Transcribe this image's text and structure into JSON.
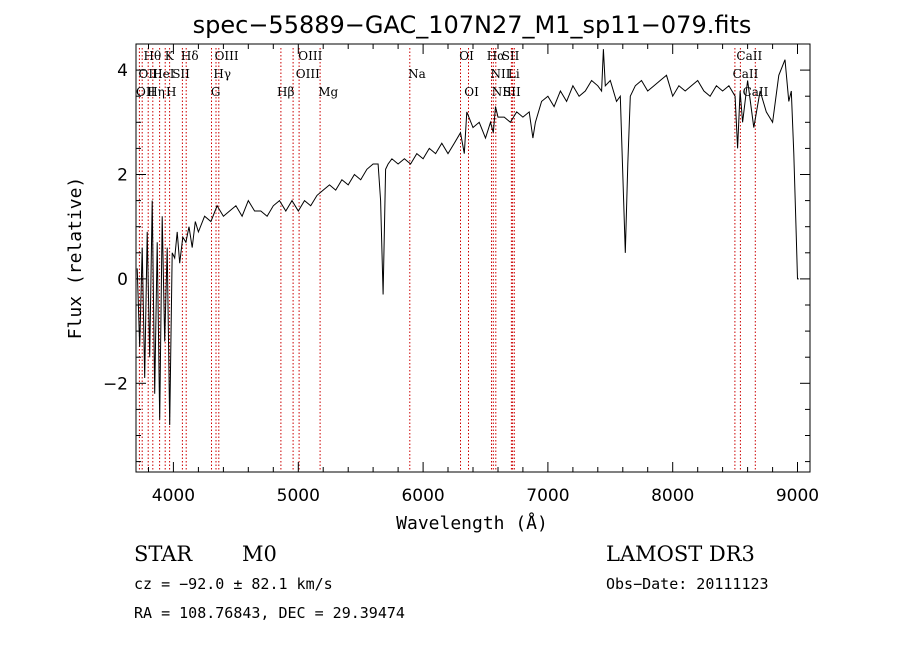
{
  "chart_data": {
    "type": "line",
    "title": "spec−55889−GAC_107N27_M1_sp11−079.fits",
    "xlabel": "Wavelength (Å)",
    "ylabel": "Flux (relative)",
    "xlim": [
      3700,
      9100
    ],
    "ylim": [
      -3.7,
      4.5
    ],
    "xticks": [
      {
        "value": 4000,
        "label": "4000"
      },
      {
        "value": 5000,
        "label": "5000"
      },
      {
        "value": 6000,
        "label": "6000"
      },
      {
        "value": 7000,
        "label": "7000"
      },
      {
        "value": 8000,
        "label": "8000"
      },
      {
        "value": 9000,
        "label": "9000"
      }
    ],
    "yticks": [
      {
        "value": -2,
        "label": "−2"
      },
      {
        "value": 0,
        "label": "0"
      },
      {
        "value": 2,
        "label": "2"
      },
      {
        "value": 4,
        "label": "4"
      }
    ],
    "series": [
      {
        "name": "flux",
        "x": [
          3710,
          3730,
          3750,
          3770,
          3790,
          3810,
          3830,
          3850,
          3870,
          3890,
          3910,
          3930,
          3950,
          3970,
          3990,
          4010,
          4030,
          4050,
          4075,
          4100,
          4125,
          4150,
          4175,
          4200,
          4250,
          4300,
          4350,
          4400,
          4450,
          4500,
          4550,
          4600,
          4650,
          4700,
          4750,
          4800,
          4850,
          4900,
          4950,
          5000,
          5050,
          5100,
          5150,
          5200,
          5250,
          5300,
          5350,
          5400,
          5450,
          5500,
          5550,
          5600,
          5640,
          5660,
          5680,
          5700,
          5720,
          5750,
          5800,
          5850,
          5900,
          5950,
          6000,
          6050,
          6100,
          6150,
          6200,
          6250,
          6300,
          6330,
          6350,
          6400,
          6450,
          6500,
          6540,
          6563,
          6580,
          6600,
          6650,
          6700,
          6750,
          6800,
          6850,
          6880,
          6900,
          6950,
          7000,
          7050,
          7100,
          7150,
          7200,
          7250,
          7300,
          7350,
          7400,
          7430,
          7445,
          7460,
          7500,
          7550,
          7580,
          7600,
          7620,
          7640,
          7660,
          7700,
          7750,
          7800,
          7850,
          7900,
          7950,
          8000,
          8050,
          8100,
          8150,
          8200,
          8250,
          8300,
          8350,
          8400,
          8450,
          8500,
          8520,
          8540,
          8560,
          8600,
          8650,
          8700,
          8750,
          8800,
          8850,
          8900,
          8930,
          8950,
          8970,
          8990,
          9000,
          9010
        ],
        "y": [
          0.2,
          -1.3,
          0.6,
          -1.9,
          0.9,
          -1.5,
          1.5,
          -2.2,
          0.7,
          -2.7,
          1.2,
          -1.2,
          0.6,
          -2.8,
          0.5,
          0.4,
          0.9,
          0.3,
          0.8,
          0.7,
          1.0,
          0.6,
          1.1,
          0.9,
          1.2,
          1.1,
          1.4,
          1.2,
          1.3,
          1.4,
          1.2,
          1.5,
          1.3,
          1.3,
          1.2,
          1.4,
          1.5,
          1.3,
          1.5,
          1.3,
          1.5,
          1.4,
          1.6,
          1.7,
          1.8,
          1.7,
          1.9,
          1.8,
          2.0,
          1.9,
          2.1,
          2.2,
          2.2,
          1.5,
          -0.3,
          2.1,
          2.2,
          2.3,
          2.2,
          2.3,
          2.2,
          2.4,
          2.3,
          2.5,
          2.4,
          2.6,
          2.4,
          2.6,
          2.8,
          2.4,
          3.2,
          2.9,
          3.0,
          2.7,
          3.0,
          2.8,
          3.3,
          3.1,
          3.1,
          3.0,
          3.2,
          3.1,
          3.2,
          2.7,
          3.0,
          3.4,
          3.5,
          3.3,
          3.6,
          3.4,
          3.7,
          3.5,
          3.6,
          3.8,
          3.7,
          3.6,
          4.4,
          3.7,
          3.8,
          3.4,
          3.5,
          2.0,
          0.5,
          2.2,
          3.5,
          3.7,
          3.8,
          3.6,
          3.7,
          3.8,
          3.9,
          3.5,
          3.7,
          3.6,
          3.7,
          3.8,
          3.6,
          3.5,
          3.7,
          3.6,
          3.7,
          3.5,
          2.5,
          3.6,
          3.0,
          3.8,
          2.9,
          3.6,
          3.2,
          3.0,
          3.9,
          4.2,
          3.4,
          3.6,
          2.4,
          0.8,
          0.0,
          0.0
        ]
      }
    ],
    "lines": [
      {
        "lambda": 3727,
        "labels": [
          "OII"
        ]
      },
      {
        "lambda": 3750,
        "labels": [
          "OII"
        ]
      },
      {
        "lambda": 3798,
        "labels": [
          "Hθ",
          "Hη"
        ]
      },
      {
        "lambda": 3835,
        "labels": [
          "Hη"
        ]
      },
      {
        "lambda": 3889,
        "labels": [
          "HeI"
        ]
      },
      {
        "lambda": 3934,
        "labels": [
          "K"
        ]
      },
      {
        "lambda": 3969,
        "labels": [
          "H"
        ]
      },
      {
        "lambda": 4072,
        "labels": [
          "SII"
        ]
      },
      {
        "lambda": 4102,
        "labels": [
          "Hδ"
        ]
      },
      {
        "lambda": 4305,
        "labels": [
          "G"
        ]
      },
      {
        "lambda": 4341,
        "labels": [
          "Hγ"
        ]
      },
      {
        "lambda": 4363,
        "labels": [
          "OIII"
        ]
      },
      {
        "lambda": 4861,
        "labels": [
          "Hβ"
        ]
      },
      {
        "lambda": 4959,
        "labels": [
          "OIII"
        ]
      },
      {
        "lambda": 5007,
        "labels": [
          "OIII"
        ]
      },
      {
        "lambda": 5175,
        "labels": [
          "Mg"
        ]
      },
      {
        "lambda": 5894,
        "labels": [
          "Na"
        ]
      },
      {
        "lambda": 6300,
        "labels": [
          "OI"
        ]
      },
      {
        "lambda": 6364,
        "labels": [
          "OI"
        ]
      },
      {
        "lambda": 6548,
        "labels": [
          "NII"
        ]
      },
      {
        "lambda": 6563,
        "labels": [
          "Hα"
        ]
      },
      {
        "lambda": 6583,
        "labels": [
          "NII"
        ]
      },
      {
        "lambda": 6708,
        "labels": [
          "Li"
        ]
      },
      {
        "lambda": 6717,
        "labels": [
          "SII"
        ]
      },
      {
        "lambda": 6731,
        "labels": [
          "SII"
        ]
      },
      {
        "lambda": 8498,
        "labels": [
          "CaII"
        ]
      },
      {
        "lambda": 8542,
        "labels": [
          "CaII"
        ]
      },
      {
        "lambda": 8662,
        "labels": [
          "CaII"
        ]
      }
    ],
    "line_labels": [
      {
        "text": "Hθ",
        "lambda": 3760,
        "row": 0
      },
      {
        "text": "K",
        "lambda": 3930,
        "row": 0
      },
      {
        "text": "Hδ",
        "lambda": 4060,
        "row": 0
      },
      {
        "text": "OIII",
        "lambda": 4330,
        "row": 0
      },
      {
        "text": "OIII",
        "lambda": 5000,
        "row": 0
      },
      {
        "text": "OI",
        "lambda": 6290,
        "row": 0
      },
      {
        "text": "Hα",
        "lambda": 6510,
        "row": 0
      },
      {
        "text": "SII",
        "lambda": 6630,
        "row": 0
      },
      {
        "text": "CaII",
        "lambda": 8510,
        "row": 0
      },
      {
        "text": "OII",
        "lambda": 3720,
        "row": 1
      },
      {
        "text": "HeI",
        "lambda": 3830,
        "row": 1
      },
      {
        "text": "SII",
        "lambda": 3990,
        "row": 1
      },
      {
        "text": "Hγ",
        "lambda": 4320,
        "row": 1
      },
      {
        "text": "OIII",
        "lambda": 4980,
        "row": 1
      },
      {
        "text": "Na",
        "lambda": 5880,
        "row": 1
      },
      {
        "text": "NII",
        "lambda": 6540,
        "row": 1
      },
      {
        "text": "Li",
        "lambda": 6680,
        "row": 1
      },
      {
        "text": "CaII",
        "lambda": 8480,
        "row": 1
      },
      {
        "text": "OII",
        "lambda": 3700,
        "row": 2
      },
      {
        "text": "Hη",
        "lambda": 3790,
        "row": 2
      },
      {
        "text": "H",
        "lambda": 3940,
        "row": 2
      },
      {
        "text": "G",
        "lambda": 4300,
        "row": 2
      },
      {
        "text": "Hβ",
        "lambda": 4830,
        "row": 2
      },
      {
        "text": "Mg",
        "lambda": 5160,
        "row": 2
      },
      {
        "text": "OI",
        "lambda": 6330,
        "row": 2
      },
      {
        "text": "NII",
        "lambda": 6550,
        "row": 2
      },
      {
        "text": "SII",
        "lambda": 6640,
        "row": 2
      },
      {
        "text": "CaII",
        "lambda": 8560,
        "row": 2
      }
    ]
  },
  "info": {
    "object_class": "STAR",
    "subclass": "M0",
    "survey": "LAMOST DR3",
    "cz": "cz = −92.0 ± 82.1 km/s",
    "obs_date": "Obs−Date: 20111123",
    "radec": "RA = 108.76843, DEC =  29.39474"
  },
  "colors": {
    "spectrum": "#000000",
    "line_marker": "#cc0000",
    "axes": "#000000"
  }
}
